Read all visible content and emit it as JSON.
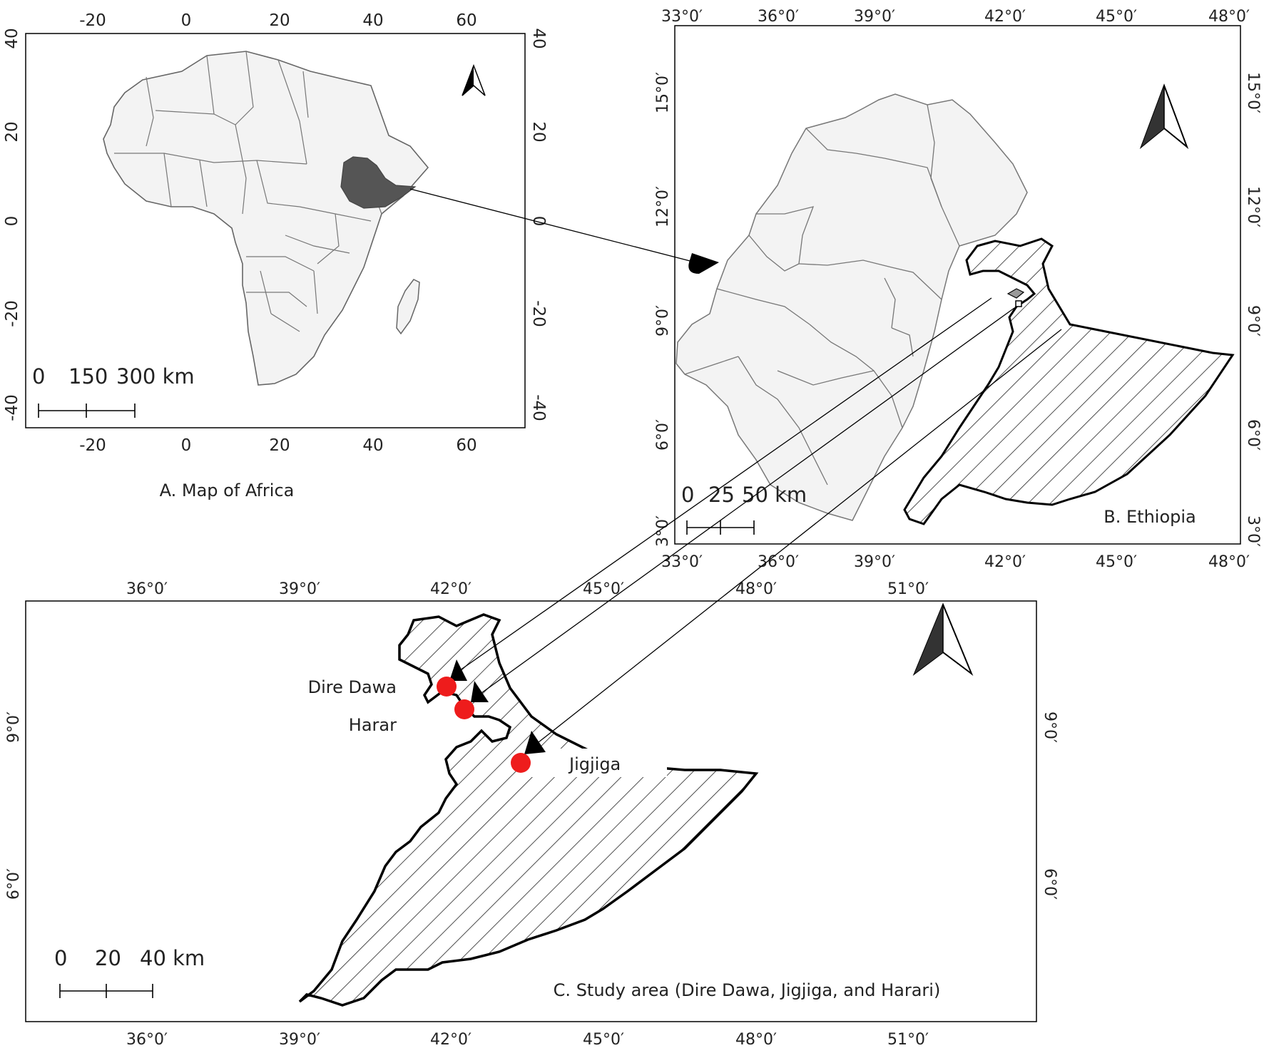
{
  "panel_a": {
    "caption": "A. Map of Africa",
    "x_ticks": [
      "-20",
      "0",
      "20",
      "40",
      "60"
    ],
    "y_ticks": [
      "40",
      "20",
      "0",
      "-20",
      "-40"
    ],
    "scalebar": [
      "0",
      "150",
      "300 km"
    ],
    "highlight_country": "Ethiopia",
    "north_arrow": "north-arrow-icon"
  },
  "panel_b": {
    "caption": "B. Ethiopia",
    "x_ticks": [
      "33°0′",
      "36°0′",
      "39°0′",
      "42°0′",
      "45°0′",
      "48°0′"
    ],
    "y_ticks": [
      "15°0′",
      "12°0′",
      "9°0′",
      "6°0′",
      "3°0′"
    ],
    "scalebar": [
      "0",
      "25",
      "50 km"
    ],
    "north_arrow": "north-arrow-icon"
  },
  "panel_c": {
    "caption": "C. Study area (Dire Dawa, Jigjiga, and Harari)",
    "x_ticks": [
      "36°0′",
      "39°0′",
      "42°0′",
      "45°0′",
      "48°0′",
      "51°0′"
    ],
    "y_ticks": [
      "9°0′",
      "6°0′"
    ],
    "scalebar": [
      "0",
      "20",
      "40 km"
    ],
    "north_arrow": "north-arrow-icon",
    "sites": [
      {
        "name": "Dire Dawa",
        "marker_color": "#ee1c1c"
      },
      {
        "name": "Harar",
        "marker_color": "#ee1c1c"
      },
      {
        "name": "Jigjiga",
        "marker_color": "#ee1c1c"
      }
    ]
  },
  "colors": {
    "land": "#f3f3f3",
    "border": "#666666",
    "ethiopia_fill": "#555555",
    "site_marker": "#ee1c1c",
    "frame": "#000000"
  }
}
